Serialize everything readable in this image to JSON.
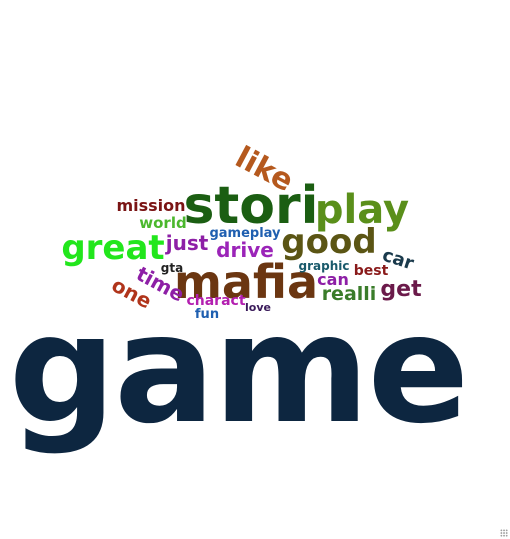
{
  "word_cloud": {
    "words": [
      {
        "text": "game",
        "color": "#0d2640"
      },
      {
        "text": "stori",
        "color": "#1b5e12"
      },
      {
        "text": "mafia",
        "color": "#6b3611"
      },
      {
        "text": "play",
        "color": "#5a8f1a"
      },
      {
        "text": "great",
        "color": "#22e61c"
      },
      {
        "text": "good",
        "color": "#5b5514"
      },
      {
        "text": "like",
        "color": "#b5591e"
      },
      {
        "text": "just",
        "color": "#8d1fa6"
      },
      {
        "text": "drive",
        "color": "#9b24b8"
      },
      {
        "text": "time",
        "color": "#8d1fa6"
      },
      {
        "text": "one",
        "color": "#b0341b"
      },
      {
        "text": "mission",
        "color": "#7a1414"
      },
      {
        "text": "world",
        "color": "#4bb82d"
      },
      {
        "text": "realli",
        "color": "#3a7c2a"
      },
      {
        "text": "get",
        "color": "#6b1a4a"
      },
      {
        "text": "car",
        "color": "#1a3a4c"
      },
      {
        "text": "can",
        "color": "#8d1fa6"
      },
      {
        "text": "best",
        "color": "#8a1b1b"
      },
      {
        "text": "graphic",
        "color": "#1a5a6b"
      },
      {
        "text": "gameplay",
        "color": "#1f5fb0"
      },
      {
        "text": "gta",
        "color": "#222222"
      },
      {
        "text": "charact",
        "color": "#b31fb0"
      },
      {
        "text": "fun",
        "color": "#1f5fb0"
      },
      {
        "text": "love",
        "color": "#3a1a5a"
      }
    ]
  }
}
